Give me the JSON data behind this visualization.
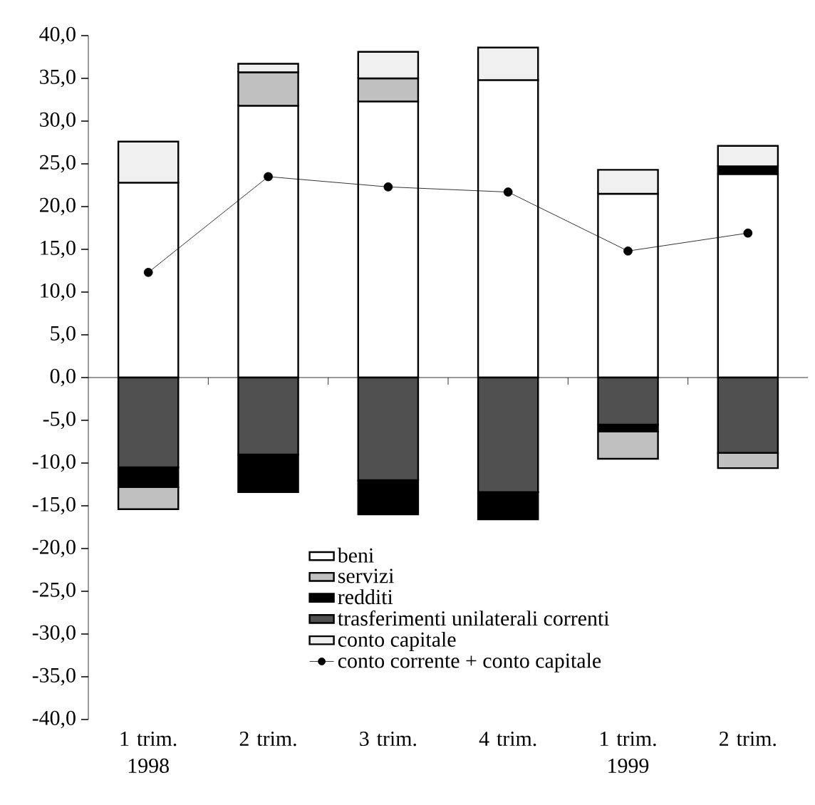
{
  "chart_data": {
    "type": "bar",
    "stacked": true,
    "categories": [
      "1 trim. 1998",
      "2 trim.",
      "3 trim.",
      "4 trim.",
      "1 trim. 1999",
      "2 trim."
    ],
    "series": [
      {
        "name": "beni",
        "color": "#ffffff",
        "values": [
          22.8,
          31.8,
          32.3,
          34.8,
          21.5,
          23.8
        ]
      },
      {
        "name": "servizi",
        "color": "#c0c0c0",
        "values": [
          -2.6,
          3.9,
          2.7,
          null,
          -3.2,
          -1.8
        ]
      },
      {
        "name": "redditi",
        "color": "#000000",
        "values": [
          -2.3,
          -4.4,
          -4.0,
          -3.2,
          -0.8,
          0.9
        ]
      },
      {
        "name": "trasferimenti unilaterali correnti",
        "color": "#505050",
        "values": [
          -10.5,
          -9.0,
          -12.0,
          -13.4,
          -5.5,
          -8.8
        ]
      },
      {
        "name": "conto capitale",
        "color": "#f0f0f0",
        "values": [
          4.8,
          1.0,
          3.1,
          3.8,
          2.8,
          2.4
        ]
      },
      {
        "name": "conto corrente + conto capitale",
        "type": "line",
        "color": "#000000",
        "marker": "circle",
        "values": [
          12.3,
          23.5,
          22.3,
          21.7,
          14.8,
          16.9
        ]
      }
    ],
    "ylim": [
      -40,
      40
    ],
    "yticks": [
      {
        "value": -40,
        "label": "-40,0"
      },
      {
        "value": -35,
        "label": "-35,0"
      },
      {
        "value": -30,
        "label": "-30,0"
      },
      {
        "value": -25,
        "label": "-25,0"
      },
      {
        "value": -20,
        "label": "-20,0"
      },
      {
        "value": -15,
        "label": "-15,0"
      },
      {
        "value": -10,
        "label": "-10,0"
      },
      {
        "value": -5,
        "label": "-5,0"
      },
      {
        "value": 0,
        "label": "0,0"
      },
      {
        "value": 5,
        "label": "5,0"
      },
      {
        "value": 10,
        "label": "10,0"
      },
      {
        "value": 15,
        "label": "15,0"
      },
      {
        "value": 20,
        "label": "20,0"
      },
      {
        "value": 25,
        "label": "25,0"
      },
      {
        "value": 30,
        "label": "30,0"
      },
      {
        "value": 35,
        "label": "35,0"
      },
      {
        "value": 40,
        "label": "40,0"
      }
    ],
    "legend": "bottom"
  }
}
